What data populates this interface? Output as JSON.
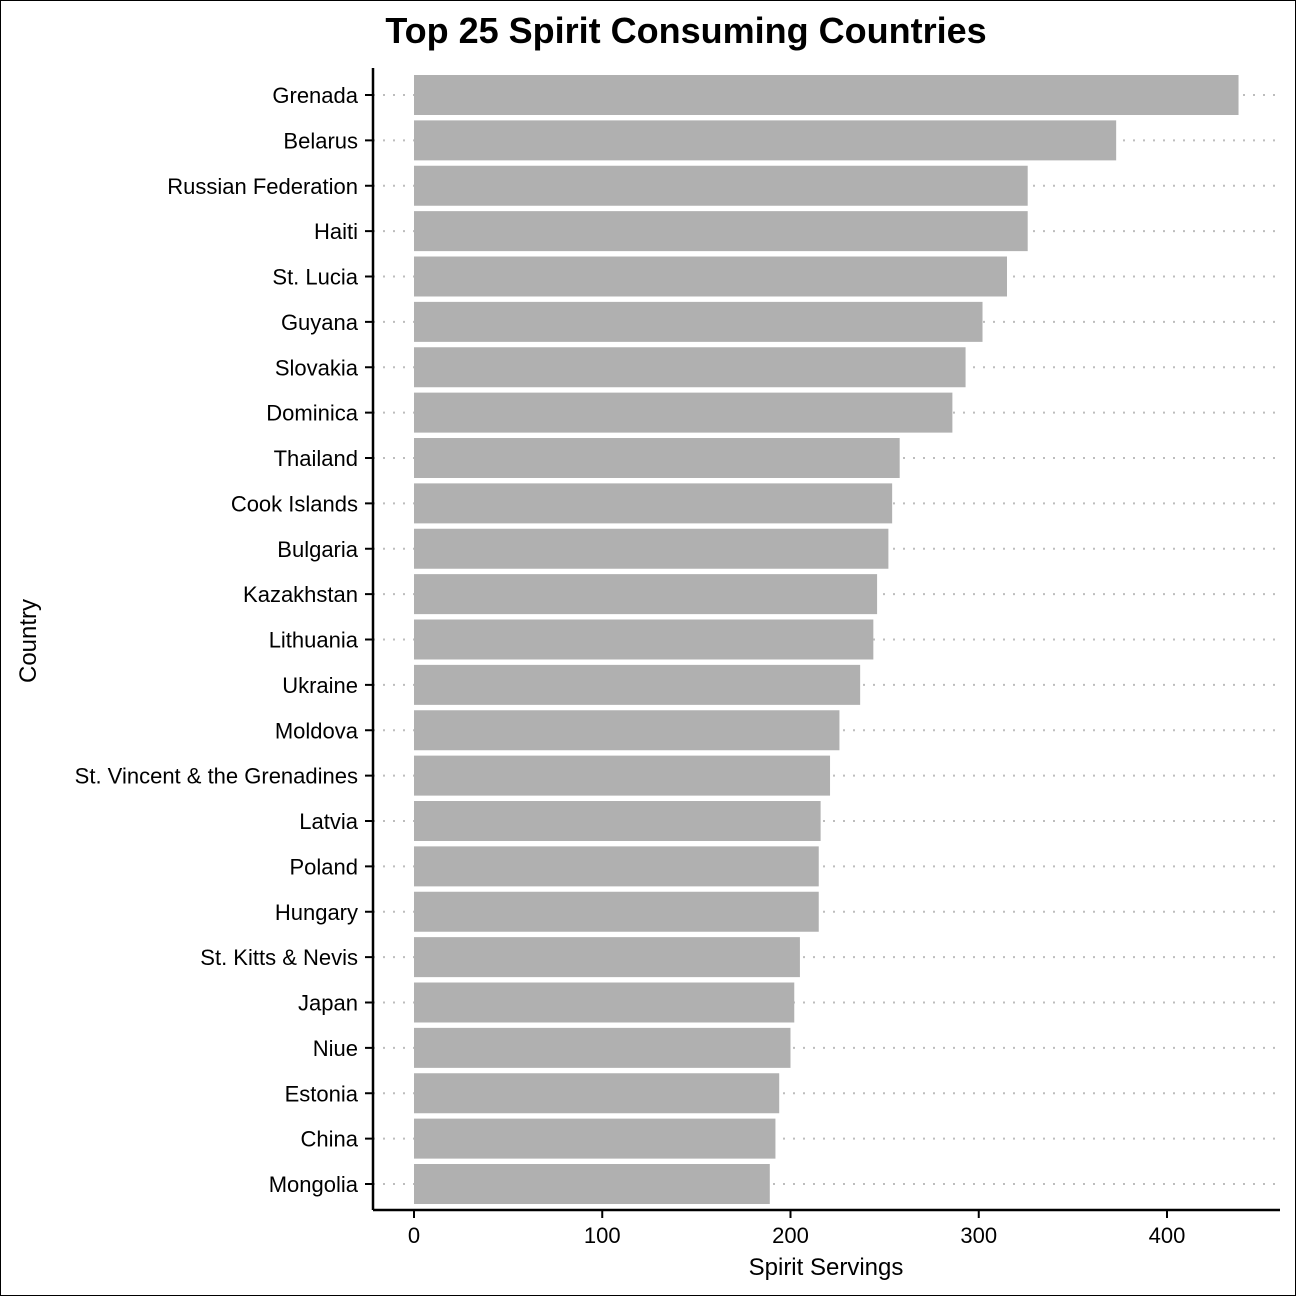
{
  "chart_data": {
    "type": "bar",
    "orientation": "horizontal",
    "title": "Top 25 Spirit Consuming Countries",
    "xlabel": "Spirit Servings",
    "ylabel": "Country",
    "xlim": [
      -22,
      460
    ],
    "xticks": [
      0,
      100,
      200,
      300,
      400
    ],
    "grid": "horizontal dotted lines at each category",
    "bar_color": "#b0b0b0",
    "grid_color": "#bdbdbd",
    "categories": [
      "Grenada",
      "Belarus",
      "Russian Federation",
      "Haiti",
      "St. Lucia",
      "Guyana",
      "Slovakia",
      "Dominica",
      "Thailand",
      "Cook Islands",
      "Bulgaria",
      "Kazakhstan",
      "Lithuania",
      "Ukraine",
      "Moldova",
      "St. Vincent & the Grenadines",
      "Latvia",
      "Poland",
      "Hungary",
      "St. Kitts & Nevis",
      "Japan",
      "Niue",
      "Estonia",
      "China",
      "Mongolia"
    ],
    "values": [
      438,
      373,
      326,
      326,
      315,
      302,
      293,
      286,
      258,
      254,
      252,
      246,
      244,
      237,
      226,
      221,
      216,
      215,
      215,
      205,
      202,
      200,
      194,
      192,
      189
    ]
  }
}
